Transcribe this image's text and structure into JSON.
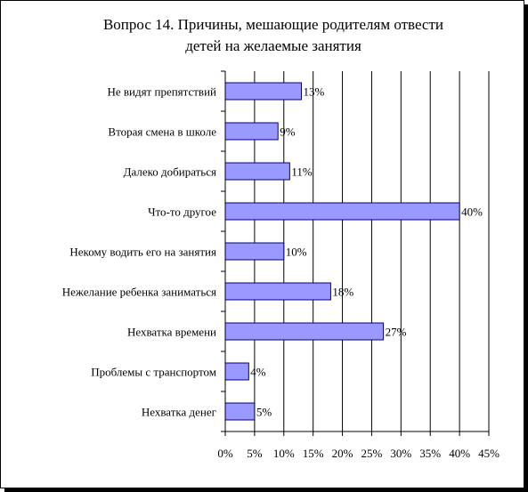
{
  "chart_data": {
    "type": "bar",
    "orientation": "horizontal",
    "title_lines": [
      "Вопрос 14. Причины, мешающие родителям отвести",
      "детей на желаемые занятия"
    ],
    "categories": [
      "Не видят препятствий",
      "Вторая смена в школе",
      "Далеко добираться",
      "Что-то другое",
      "Некому водить его на занятия",
      "Нежелание ребенка заниматься",
      "Нехватка времени",
      "Проблемы с транспортом",
      "Нехватка денег"
    ],
    "values": [
      13,
      9,
      11,
      40,
      10,
      18,
      27,
      4,
      5
    ],
    "value_labels": [
      "13%",
      "9%",
      "11%",
      "40%",
      "10%",
      "18%",
      "27%",
      "4%",
      "5%"
    ],
    "xlim": [
      0,
      45
    ],
    "xticks": [
      0,
      5,
      10,
      15,
      20,
      25,
      30,
      35,
      40,
      45
    ],
    "xtick_labels": [
      "0%",
      "5%",
      "10%",
      "15%",
      "20%",
      "25%",
      "30%",
      "35%",
      "40%",
      "45%"
    ],
    "grid": "vertical",
    "legend": "none",
    "colors": {
      "bar_fill": "#9999ff",
      "bar_stroke": "#000080",
      "axis": "#000000",
      "grid": "#000000"
    }
  }
}
